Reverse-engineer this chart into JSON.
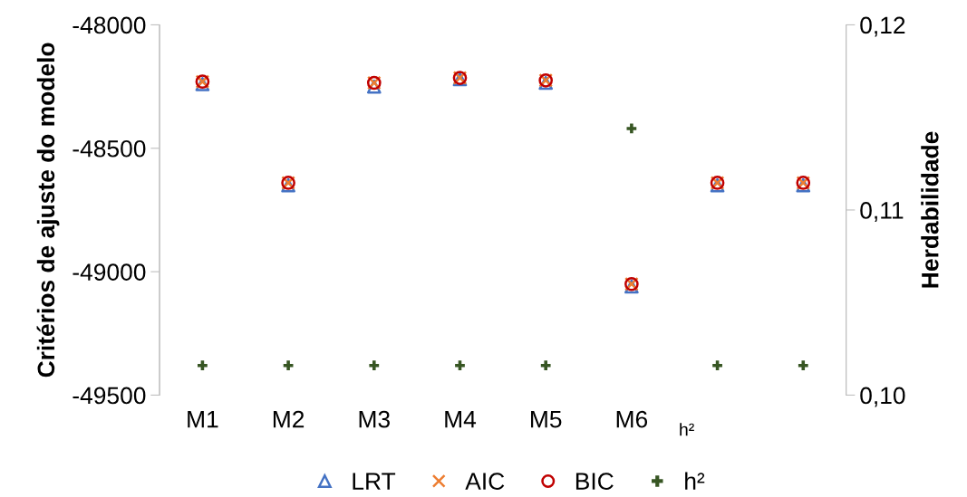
{
  "chart_data": {
    "type": "scatter",
    "categories": [
      "M1",
      "M2",
      "M3",
      "M4",
      "M5",
      "M6",
      null,
      null
    ],
    "ylabel": "Critérios de ajuste do modelo",
    "y2label": "Herdabilidade",
    "ylim": [
      -49500,
      -48000
    ],
    "yticks": [
      -48000,
      -48500,
      -49000,
      -49500
    ],
    "y2lim": [
      0.1,
      0.12
    ],
    "y2ticks": [
      {
        "value": 0.1,
        "label": "0,10"
      },
      {
        "value": 0.11,
        "label": "0,11"
      },
      {
        "value": 0.12,
        "label": "0,12"
      }
    ],
    "grid": false,
    "legend": "bottom",
    "annotations": [
      "h²"
    ],
    "series": [
      {
        "name": "LRT",
        "color": "#4472c4",
        "marker": "triangle",
        "values": [
          -48240,
          -48650,
          -48250,
          -48220,
          -48235,
          -49060,
          -48650,
          -48650
        ]
      },
      {
        "name": "AIC",
        "color": "#ed7d31",
        "marker": "cross",
        "values": [
          -48230,
          -48640,
          -48235,
          -48215,
          -48225,
          -49050,
          -48640,
          -48640
        ]
      },
      {
        "name": "BIC",
        "color": "#c00000",
        "marker": "circle",
        "values": [
          -48230,
          -48640,
          -48235,
          -48215,
          -48225,
          -49050,
          -48640,
          -48640
        ]
      },
      {
        "name": "h²",
        "color": "#375623",
        "marker": "plus",
        "axis": "y2",
        "values": [
          0.1016,
          0.1016,
          0.1016,
          0.1016,
          0.1016,
          0.1144,
          0.1016,
          0.1016
        ]
      }
    ]
  }
}
